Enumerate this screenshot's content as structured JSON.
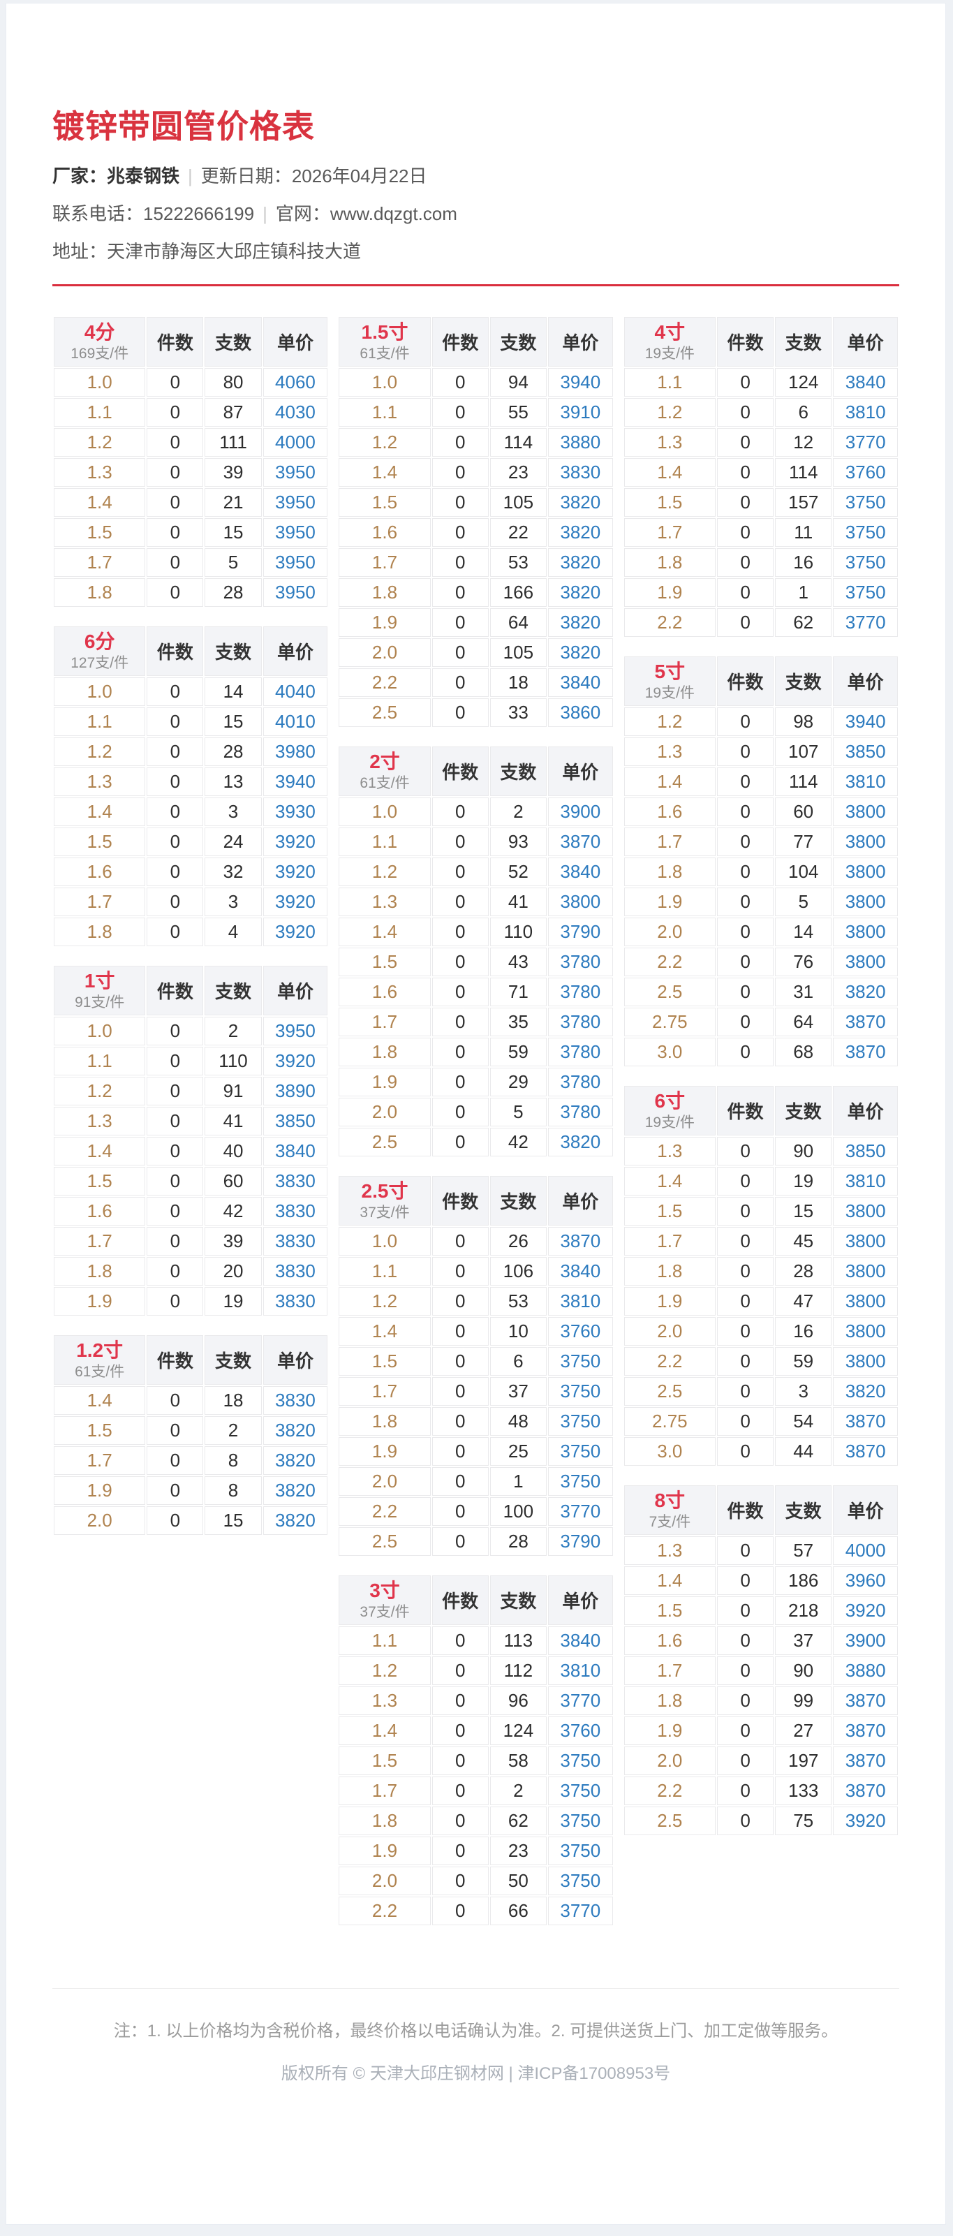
{
  "page": {
    "title": "镀锌带圆管价格表",
    "info": {
      "factory_label": "厂家：",
      "factory_value": "兆泰钢铁",
      "divider": "|",
      "date_label": "更新日期：",
      "date_value": "2026年04月22日",
      "phone_label": "联系电话：",
      "phone_value": "15222666199",
      "site_label": "官网：",
      "site_value": "www.dqzgt.com",
      "address_label": "地址：",
      "address_value": "天津市静海区大邱庄镇科技大道"
    },
    "footer": {
      "note": "注：1. 以上价格均为含税价格，最终价格以电话确认为准。2. 可提供送货上门、加工定做等服务。",
      "copyright": "版权所有 © 天津大邱庄钢材网 | 津ICP备17008953号"
    }
  },
  "colors": {
    "accent_red": "#d9333f",
    "spec_red": "#e0354b",
    "price_blue": "#2d7bbf",
    "size_tan": "#b0834f",
    "header_bg": "#f3f4f7"
  },
  "table_headers": [
    "件数",
    "支数",
    "单价"
  ],
  "layout": {
    "columns": [
      [
        0,
        1,
        2,
        3
      ],
      [
        4,
        5,
        6,
        7
      ],
      [
        8,
        9,
        10,
        11
      ]
    ]
  },
  "tables": [
    {
      "spec": "4分",
      "per": "169支/件",
      "rows": [
        [
          "1.0",
          0,
          80,
          4060
        ],
        [
          "1.1",
          0,
          87,
          4030
        ],
        [
          "1.2",
          0,
          111,
          4000
        ],
        [
          "1.3",
          0,
          39,
          3950
        ],
        [
          "1.4",
          0,
          21,
          3950
        ],
        [
          "1.5",
          0,
          15,
          3950
        ],
        [
          "1.7",
          0,
          5,
          3950
        ],
        [
          "1.8",
          0,
          28,
          3950
        ]
      ]
    },
    {
      "spec": "6分",
      "per": "127支/件",
      "rows": [
        [
          "1.0",
          0,
          14,
          4040
        ],
        [
          "1.1",
          0,
          15,
          4010
        ],
        [
          "1.2",
          0,
          28,
          3980
        ],
        [
          "1.3",
          0,
          13,
          3940
        ],
        [
          "1.4",
          0,
          3,
          3930
        ],
        [
          "1.5",
          0,
          24,
          3920
        ],
        [
          "1.6",
          0,
          32,
          3920
        ],
        [
          "1.7",
          0,
          3,
          3920
        ],
        [
          "1.8",
          0,
          4,
          3920
        ]
      ]
    },
    {
      "spec": "1寸",
      "per": "91支/件",
      "rows": [
        [
          "1.0",
          0,
          2,
          3950
        ],
        [
          "1.1",
          0,
          110,
          3920
        ],
        [
          "1.2",
          0,
          91,
          3890
        ],
        [
          "1.3",
          0,
          41,
          3850
        ],
        [
          "1.4",
          0,
          40,
          3840
        ],
        [
          "1.5",
          0,
          60,
          3830
        ],
        [
          "1.6",
          0,
          42,
          3830
        ],
        [
          "1.7",
          0,
          39,
          3830
        ],
        [
          "1.8",
          0,
          20,
          3830
        ],
        [
          "1.9",
          0,
          19,
          3830
        ]
      ]
    },
    {
      "spec": "1.2寸",
      "per": "61支/件",
      "rows": [
        [
          "1.4",
          0,
          18,
          3830
        ],
        [
          "1.5",
          0,
          2,
          3820
        ],
        [
          "1.7",
          0,
          8,
          3820
        ],
        [
          "1.9",
          0,
          8,
          3820
        ],
        [
          "2.0",
          0,
          15,
          3820
        ]
      ]
    },
    {
      "spec": "1.5寸",
      "per": "61支/件",
      "rows": [
        [
          "1.0",
          0,
          94,
          3940
        ],
        [
          "1.1",
          0,
          55,
          3910
        ],
        [
          "1.2",
          0,
          114,
          3880
        ],
        [
          "1.4",
          0,
          23,
          3830
        ],
        [
          "1.5",
          0,
          105,
          3820
        ],
        [
          "1.6",
          0,
          22,
          3820
        ],
        [
          "1.7",
          0,
          53,
          3820
        ],
        [
          "1.8",
          0,
          166,
          3820
        ],
        [
          "1.9",
          0,
          64,
          3820
        ],
        [
          "2.0",
          0,
          105,
          3820
        ],
        [
          "2.2",
          0,
          18,
          3840
        ],
        [
          "2.5",
          0,
          33,
          3860
        ]
      ]
    },
    {
      "spec": "2寸",
      "per": "61支/件",
      "rows": [
        [
          "1.0",
          0,
          2,
          3900
        ],
        [
          "1.1",
          0,
          93,
          3870
        ],
        [
          "1.2",
          0,
          52,
          3840
        ],
        [
          "1.3",
          0,
          41,
          3800
        ],
        [
          "1.4",
          0,
          110,
          3790
        ],
        [
          "1.5",
          0,
          43,
          3780
        ],
        [
          "1.6",
          0,
          71,
          3780
        ],
        [
          "1.7",
          0,
          35,
          3780
        ],
        [
          "1.8",
          0,
          59,
          3780
        ],
        [
          "1.9",
          0,
          29,
          3780
        ],
        [
          "2.0",
          0,
          5,
          3780
        ],
        [
          "2.5",
          0,
          42,
          3820
        ]
      ]
    },
    {
      "spec": "2.5寸",
      "per": "37支/件",
      "rows": [
        [
          "1.0",
          0,
          26,
          3870
        ],
        [
          "1.1",
          0,
          106,
          3840
        ],
        [
          "1.2",
          0,
          53,
          3810
        ],
        [
          "1.4",
          0,
          10,
          3760
        ],
        [
          "1.5",
          0,
          6,
          3750
        ],
        [
          "1.7",
          0,
          37,
          3750
        ],
        [
          "1.8",
          0,
          48,
          3750
        ],
        [
          "1.9",
          0,
          25,
          3750
        ],
        [
          "2.0",
          0,
          1,
          3750
        ],
        [
          "2.2",
          0,
          100,
          3770
        ],
        [
          "2.5",
          0,
          28,
          3790
        ]
      ]
    },
    {
      "spec": "3寸",
      "per": "37支/件",
      "rows": [
        [
          "1.1",
          0,
          113,
          3840
        ],
        [
          "1.2",
          0,
          112,
          3810
        ],
        [
          "1.3",
          0,
          96,
          3770
        ],
        [
          "1.4",
          0,
          124,
          3760
        ],
        [
          "1.5",
          0,
          58,
          3750
        ],
        [
          "1.7",
          0,
          2,
          3750
        ],
        [
          "1.8",
          0,
          62,
          3750
        ],
        [
          "1.9",
          0,
          23,
          3750
        ],
        [
          "2.0",
          0,
          50,
          3750
        ],
        [
          "2.2",
          0,
          66,
          3770
        ]
      ]
    },
    {
      "spec": "4寸",
      "per": "19支/件",
      "rows": [
        [
          "1.1",
          0,
          124,
          3840
        ],
        [
          "1.2",
          0,
          6,
          3810
        ],
        [
          "1.3",
          0,
          12,
          3770
        ],
        [
          "1.4",
          0,
          114,
          3760
        ],
        [
          "1.5",
          0,
          157,
          3750
        ],
        [
          "1.7",
          0,
          11,
          3750
        ],
        [
          "1.8",
          0,
          16,
          3750
        ],
        [
          "1.9",
          0,
          1,
          3750
        ],
        [
          "2.2",
          0,
          62,
          3770
        ]
      ]
    },
    {
      "spec": "5寸",
      "per": "19支/件",
      "rows": [
        [
          "1.2",
          0,
          98,
          3940
        ],
        [
          "1.3",
          0,
          107,
          3850
        ],
        [
          "1.4",
          0,
          114,
          3810
        ],
        [
          "1.6",
          0,
          60,
          3800
        ],
        [
          "1.7",
          0,
          77,
          3800
        ],
        [
          "1.8",
          0,
          104,
          3800
        ],
        [
          "1.9",
          0,
          5,
          3800
        ],
        [
          "2.0",
          0,
          14,
          3800
        ],
        [
          "2.2",
          0,
          76,
          3800
        ],
        [
          "2.5",
          0,
          31,
          3820
        ],
        [
          "2.75",
          0,
          64,
          3870
        ],
        [
          "3.0",
          0,
          68,
          3870
        ]
      ]
    },
    {
      "spec": "6寸",
      "per": "19支/件",
      "rows": [
        [
          "1.3",
          0,
          90,
          3850
        ],
        [
          "1.4",
          0,
          19,
          3810
        ],
        [
          "1.5",
          0,
          15,
          3800
        ],
        [
          "1.7",
          0,
          45,
          3800
        ],
        [
          "1.8",
          0,
          28,
          3800
        ],
        [
          "1.9",
          0,
          47,
          3800
        ],
        [
          "2.0",
          0,
          16,
          3800
        ],
        [
          "2.2",
          0,
          59,
          3800
        ],
        [
          "2.5",
          0,
          3,
          3820
        ],
        [
          "2.75",
          0,
          54,
          3870
        ],
        [
          "3.0",
          0,
          44,
          3870
        ]
      ]
    },
    {
      "spec": "8寸",
      "per": "7支/件",
      "rows": [
        [
          "1.3",
          0,
          57,
          4000
        ],
        [
          "1.4",
          0,
          186,
          3960
        ],
        [
          "1.5",
          0,
          218,
          3920
        ],
        [
          "1.6",
          0,
          37,
          3900
        ],
        [
          "1.7",
          0,
          90,
          3880
        ],
        [
          "1.8",
          0,
          99,
          3870
        ],
        [
          "1.9",
          0,
          27,
          3870
        ],
        [
          "2.0",
          0,
          197,
          3870
        ],
        [
          "2.2",
          0,
          133,
          3870
        ],
        [
          "2.5",
          0,
          75,
          3920
        ]
      ]
    }
  ]
}
